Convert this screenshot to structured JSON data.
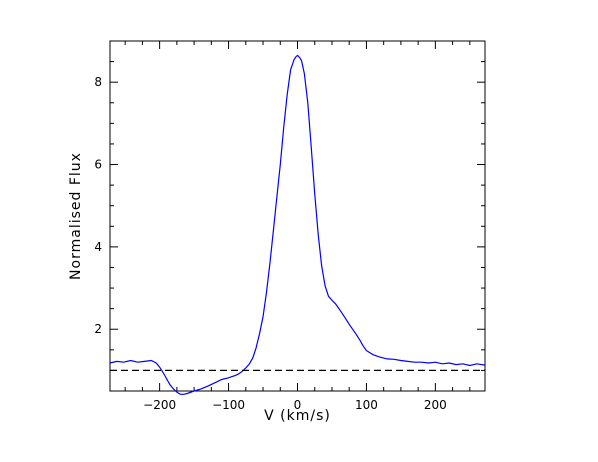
{
  "chart_data": {
    "type": "line",
    "title": "",
    "xlabel": "V  (km/s)",
    "ylabel": "Normalised  Flux",
    "xlim": [
      -272,
      272
    ],
    "ylim": [
      0.5,
      9.0
    ],
    "x_ticks": [
      -200,
      -100,
      0,
      100,
      200
    ],
    "x_tick_labels": [
      "−200",
      "−100",
      "0",
      "100",
      "200"
    ],
    "y_ticks": [
      2,
      4,
      6,
      8
    ],
    "y_tick_labels": [
      "2",
      "4",
      "6",
      "8"
    ],
    "grid": false,
    "legend": "none",
    "series": [
      {
        "style": "solid",
        "color": "#0000ff",
        "x": [
          -272,
          -262,
          -252,
          -242,
          -232,
          -222,
          -212,
          -205,
          -200,
          -195,
          -190,
          -185,
          -180,
          -175,
          -170,
          -165,
          -160,
          -150,
          -140,
          -130,
          -120,
          -110,
          -100,
          -95,
          -90,
          -85,
          -80,
          -75,
          -70,
          -65,
          -60,
          -55,
          -50,
          -45,
          -40,
          -35,
          -30,
          -25,
          -20,
          -15,
          -10,
          -5,
          -2,
          0,
          3,
          6,
          10,
          15,
          20,
          25,
          30,
          35,
          40,
          45,
          50,
          55,
          60,
          65,
          70,
          75,
          80,
          85,
          90,
          95,
          100,
          110,
          120,
          130,
          140,
          150,
          160,
          170,
          180,
          190,
          200,
          210,
          220,
          230,
          240,
          250,
          260,
          272
        ],
        "y": [
          1.18,
          1.22,
          1.2,
          1.24,
          1.2,
          1.22,
          1.24,
          1.18,
          1.08,
          0.95,
          0.8,
          0.65,
          0.55,
          0.47,
          0.42,
          0.42,
          0.44,
          0.5,
          0.55,
          0.62,
          0.7,
          0.78,
          0.82,
          0.85,
          0.88,
          0.92,
          0.98,
          1.06,
          1.15,
          1.3,
          1.55,
          1.9,
          2.3,
          2.9,
          3.6,
          4.4,
          5.2,
          6.0,
          6.9,
          7.7,
          8.3,
          8.55,
          8.62,
          8.65,
          8.6,
          8.52,
          8.2,
          7.5,
          6.4,
          5.3,
          4.3,
          3.55,
          3.05,
          2.8,
          2.7,
          2.62,
          2.5,
          2.38,
          2.25,
          2.12,
          2.0,
          1.88,
          1.75,
          1.6,
          1.48,
          1.38,
          1.32,
          1.28,
          1.27,
          1.24,
          1.22,
          1.2,
          1.2,
          1.18,
          1.2,
          1.16,
          1.18,
          1.14,
          1.16,
          1.12,
          1.16,
          1.13
        ]
      },
      {
        "style": "dashed",
        "color": "#000000",
        "x": [
          -272,
          272
        ],
        "y": [
          1.0,
          1.0
        ]
      }
    ]
  }
}
